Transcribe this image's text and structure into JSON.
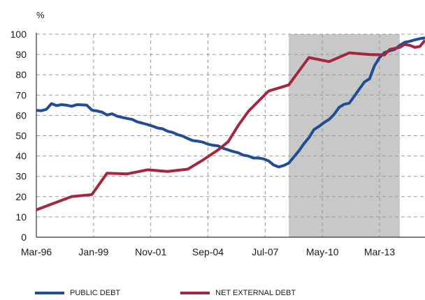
{
  "chart_data": {
    "type": "line",
    "unit": "%",
    "ylim": [
      0,
      100
    ],
    "y_ticks": [
      0,
      10,
      20,
      30,
      40,
      50,
      60,
      70,
      80,
      90,
      100
    ],
    "x_tick_labels": [
      "Mar-96",
      "Jan-99",
      "Nov-01",
      "Sep-04",
      "Jul-07",
      "May-10",
      "Mar-13"
    ],
    "x_tick_dates": [
      "1996-03",
      "1999-01",
      "2001-11",
      "2004-09",
      "2007-07",
      "2010-05",
      "2013-03"
    ],
    "xlim": [
      "1996-03",
      "2015-06"
    ],
    "grid": "horizontal-dashed",
    "shaded_period": [
      "2008-09",
      "2014-03"
    ],
    "shade_color": "#c8c8c8",
    "legend_position": "bottom",
    "series": [
      {
        "name": "PUBLIC DEBT",
        "color": "#1f4e96",
        "points": [
          [
            "1996-03",
            62.5
          ],
          [
            "1996-06",
            62.3
          ],
          [
            "1996-09",
            63.0
          ],
          [
            "1996-12",
            65.8
          ],
          [
            "1997-03",
            64.8
          ],
          [
            "1997-06",
            65.3
          ],
          [
            "1997-09",
            65.0
          ],
          [
            "1997-12",
            64.5
          ],
          [
            "1998-03",
            65.3
          ],
          [
            "1998-06",
            65.2
          ],
          [
            "1998-09",
            65.0
          ],
          [
            "1998-12",
            62.6
          ],
          [
            "1999-03",
            62.2
          ],
          [
            "1999-06",
            61.6
          ],
          [
            "1999-09",
            60.2
          ],
          [
            "1999-12",
            60.8
          ],
          [
            "2000-03",
            59.6
          ],
          [
            "2000-06",
            59.0
          ],
          [
            "2000-09",
            58.5
          ],
          [
            "2000-12",
            58.0
          ],
          [
            "2001-03",
            56.8
          ],
          [
            "2001-06",
            56.2
          ],
          [
            "2001-09",
            55.5
          ],
          [
            "2001-12",
            54.7
          ],
          [
            "2002-03",
            53.8
          ],
          [
            "2002-06",
            53.4
          ],
          [
            "2002-09",
            52.2
          ],
          [
            "2002-12",
            51.6
          ],
          [
            "2003-03",
            50.5
          ],
          [
            "2003-06",
            49.8
          ],
          [
            "2003-09",
            48.6
          ],
          [
            "2003-12",
            47.6
          ],
          [
            "2004-03",
            47.3
          ],
          [
            "2004-06",
            46.8
          ],
          [
            "2004-09",
            45.8
          ],
          [
            "2004-12",
            45.3
          ],
          [
            "2005-03",
            45.0
          ],
          [
            "2005-06",
            43.8
          ],
          [
            "2005-09",
            43.0
          ],
          [
            "2005-12",
            42.2
          ],
          [
            "2006-03",
            41.6
          ],
          [
            "2006-06",
            40.4
          ],
          [
            "2006-09",
            40.0
          ],
          [
            "2006-12",
            39.0
          ],
          [
            "2007-03",
            39.0
          ],
          [
            "2007-06",
            38.6
          ],
          [
            "2007-09",
            37.6
          ],
          [
            "2007-12",
            35.6
          ],
          [
            "2008-03",
            34.6
          ],
          [
            "2008-06",
            35.3
          ],
          [
            "2008-09",
            36.5
          ],
          [
            "2008-12",
            39.5
          ],
          [
            "2009-03",
            42.5
          ],
          [
            "2009-06",
            46.0
          ],
          [
            "2009-09",
            49.0
          ],
          [
            "2009-12",
            53.0
          ],
          [
            "2010-03",
            54.6
          ],
          [
            "2010-06",
            56.5
          ],
          [
            "2010-09",
            58.0
          ],
          [
            "2010-12",
            60.5
          ],
          [
            "2011-03",
            64.0
          ],
          [
            "2011-06",
            65.5
          ],
          [
            "2011-09",
            66.0
          ],
          [
            "2011-12",
            69.5
          ],
          [
            "2012-03",
            73.0
          ],
          [
            "2012-06",
            76.5
          ],
          [
            "2012-09",
            78.0
          ],
          [
            "2012-12",
            84.5
          ],
          [
            "2013-03",
            88.5
          ],
          [
            "2013-06",
            91.0
          ],
          [
            "2013-09",
            91.8
          ],
          [
            "2013-12",
            92.5
          ],
          [
            "2014-03",
            94.5
          ],
          [
            "2014-06",
            96.0
          ],
          [
            "2014-09",
            96.5
          ],
          [
            "2014-12",
            97.2
          ],
          [
            "2015-03",
            97.8
          ],
          [
            "2015-06",
            98.2
          ]
        ]
      },
      {
        "name": "NET EXTERNAL DEBT",
        "color": "#a3283d",
        "points": [
          [
            "1996-03",
            13.5
          ],
          [
            "1997-12",
            20.0
          ],
          [
            "1998-12",
            21.0
          ],
          [
            "1999-09",
            31.5
          ],
          [
            "2000-09",
            31.2
          ],
          [
            "2001-09",
            33.2
          ],
          [
            "2002-09",
            32.4
          ],
          [
            "2003-09",
            33.5
          ],
          [
            "2004-06",
            38.0
          ],
          [
            "2005-03",
            43.0
          ],
          [
            "2005-09",
            47.0
          ],
          [
            "2006-03",
            55.0
          ],
          [
            "2006-09",
            62.0
          ],
          [
            "2007-09",
            72.0
          ],
          [
            "2008-09",
            75.0
          ],
          [
            "2009-09",
            88.5
          ],
          [
            "2010-09",
            86.5
          ],
          [
            "2011-09",
            90.8
          ],
          [
            "2012-09",
            90.0
          ],
          [
            "2013-06",
            89.8
          ],
          [
            "2013-09",
            92.5
          ],
          [
            "2014-03",
            93.5
          ],
          [
            "2014-06",
            95.0
          ],
          [
            "2014-09",
            94.5
          ],
          [
            "2014-12",
            93.5
          ],
          [
            "2015-03",
            94.0
          ],
          [
            "2015-06",
            97.0
          ]
        ]
      }
    ]
  }
}
